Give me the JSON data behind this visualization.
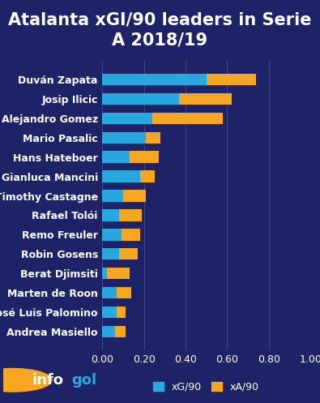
{
  "title": "Atalanta xGI/90 leaders in Serie\nA 2018/19",
  "background_color": "#1e2266",
  "bar_color_xg": "#29a8e0",
  "bar_color_xa": "#f5a623",
  "grid_color": "#3a4490",
  "text_color": "#ffffff",
  "xlim": [
    0,
    1.0
  ],
  "xticks": [
    0.0,
    0.2,
    0.4,
    0.6,
    0.8,
    1.0
  ],
  "players": [
    "Duván Zapata",
    "Josip Ilicic",
    "Alejandro Gomez",
    "Mario Pasalic",
    "Hans Hateboer",
    "Gianluca Mancini",
    "Timothy Castagne",
    "Rafael Tolói",
    "Remo Freuler",
    "Robin Gosens",
    "Berat Djimsiti",
    "Marten de Roon",
    "José Luis Palomino",
    "Andrea Masiello"
  ],
  "xg": [
    0.5,
    0.37,
    0.24,
    0.21,
    0.13,
    0.18,
    0.1,
    0.08,
    0.09,
    0.08,
    0.02,
    0.07,
    0.07,
    0.06
  ],
  "xa": [
    0.24,
    0.25,
    0.34,
    0.07,
    0.14,
    0.07,
    0.11,
    0.11,
    0.09,
    0.09,
    0.11,
    0.07,
    0.04,
    0.05
  ],
  "legend_xg": "xG/90",
  "legend_xa": "xA/90",
  "title_fontsize": 15,
  "label_fontsize": 9,
  "tick_fontsize": 9
}
